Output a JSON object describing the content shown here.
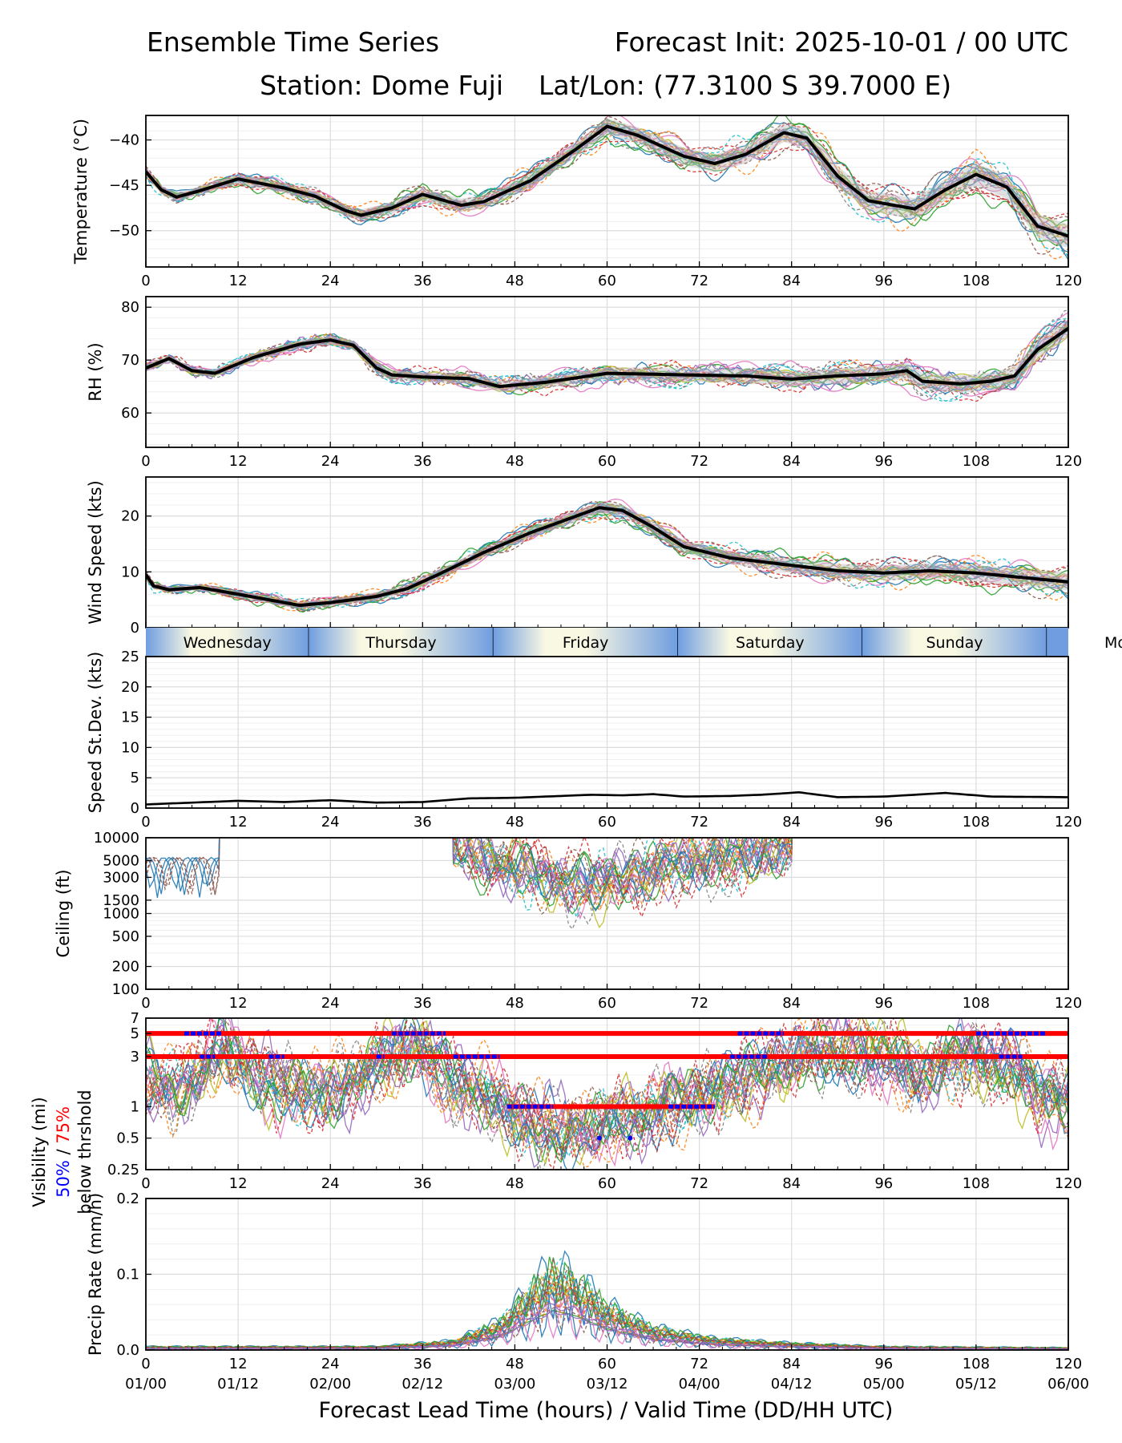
{
  "header": {
    "title_left": "Ensemble Time Series",
    "title_right": "Forecast Init: 2025-10-01 / 00 UTC",
    "station": "Station: Dome Fuji",
    "latlon": "Lat/Lon: (77.3100 S 39.7000 E)"
  },
  "x_axis": {
    "ticks": [
      0,
      12,
      24,
      36,
      48,
      60,
      72,
      84,
      96,
      108,
      120
    ],
    "valid_times": [
      "01/00",
      "01/12",
      "02/00",
      "02/12",
      "03/00",
      "03/12",
      "04/00",
      "04/12",
      "05/00",
      "05/12",
      "06/00"
    ],
    "label": "Forecast Lead Time (hours) / Valid Time (DD/HH UTC)"
  },
  "day_band": {
    "days": [
      {
        "name": "Wednesday",
        "start": 0,
        "end": 21.2
      },
      {
        "name": "Thursday",
        "start": 21.2,
        "end": 45.2
      },
      {
        "name": "Friday",
        "start": 45.2,
        "end": 69.2
      },
      {
        "name": "Saturday",
        "start": 69.2,
        "end": 93.2
      },
      {
        "name": "Sunday",
        "start": 93.2,
        "end": 117.2
      },
      {
        "name": "Mo",
        "start": 117.2,
        "end": 120
      }
    ],
    "colors": {
      "day": "#f9f8e2",
      "night": "#6f9de0"
    }
  },
  "legend": {
    "vis_label_top": "Visibility (mi)",
    "vis_label_50": "50%",
    "vis_label_slash": " / ",
    "vis_label_75": "75%",
    "vis_label_bottom": "below thrshold",
    "color_50": "#0000ff",
    "color_75": "#ff0000"
  },
  "member_colors": [
    "#1f77b4",
    "#ff7f0e",
    "#2ca02c",
    "#d62728",
    "#9467bd",
    "#8c564b",
    "#e377c2",
    "#7f7f7f",
    "#bcbd22",
    "#17becf"
  ],
  "chart_data": [
    {
      "id": "temp",
      "type": "line",
      "title": "",
      "xlabel": "",
      "ylabel": "Temperature (°C)",
      "ylim": [
        -54,
        -37.3
      ],
      "yscale": "linear",
      "yticks": [
        -50,
        -45,
        -40
      ],
      "ytick_labels": [
        "−50",
        "−45",
        "−40"
      ],
      "members": 26,
      "spread": 1.2,
      "noise": 0.4,
      "mean": {
        "x": [
          0,
          2,
          4,
          7,
          12,
          18,
          22,
          26,
          28,
          32,
          36,
          41,
          44,
          50,
          56,
          60,
          64,
          70,
          74,
          78,
          83,
          86,
          90,
          94,
          100,
          104,
          108,
          112,
          116,
          120
        ],
        "y": [
          -43.5,
          -45.5,
          -46.3,
          -45.6,
          -44.3,
          -45.3,
          -46.2,
          -47.8,
          -48.3,
          -47.5,
          -46.0,
          -47.2,
          -46.8,
          -44.5,
          -41.0,
          -38.5,
          -39.5,
          -41.8,
          -42.6,
          -41.6,
          -39.2,
          -39.8,
          -44.0,
          -46.7,
          -47.6,
          -45.5,
          -43.8,
          -45.2,
          -49.5,
          -50.6
        ]
      }
    },
    {
      "id": "rh",
      "type": "line",
      "title": "",
      "xlabel": "",
      "ylabel": "RH (%)",
      "ylim": [
        53.5,
        82
      ],
      "yscale": "linear",
      "yticks": [
        60,
        70,
        80
      ],
      "ytick_labels": [
        "60",
        "70",
        "80"
      ],
      "members": 26,
      "spread": 1.6,
      "noise": 0.7,
      "mean": {
        "x": [
          0,
          3,
          6,
          9,
          14,
          20,
          24,
          27,
          30,
          32,
          36,
          42,
          46,
          52,
          60,
          70,
          78,
          84,
          90,
          96,
          99,
          101,
          106,
          110,
          113,
          116,
          120
        ],
        "y": [
          68.5,
          70.3,
          68.0,
          67.5,
          70.5,
          73.0,
          73.8,
          72.8,
          68.5,
          67.2,
          66.8,
          66.5,
          65.0,
          65.8,
          67.5,
          67.2,
          67.0,
          66.4,
          67.0,
          67.4,
          68.0,
          66.0,
          65.5,
          66.0,
          67.0,
          72.0,
          76.0
        ]
      }
    },
    {
      "id": "wind",
      "type": "line",
      "title": "",
      "xlabel": "",
      "ylabel": "Wind Speed (kts)",
      "ylim": [
        0,
        27
      ],
      "yscale": "linear",
      "yticks": [
        0,
        10,
        20
      ],
      "ytick_labels": [
        "0",
        "10",
        "20"
      ],
      "members": 26,
      "spread": 1.4,
      "noise": 0.6,
      "mean": {
        "x": [
          0,
          1,
          3,
          7,
          12,
          16,
          20,
          24,
          30,
          34,
          38,
          44,
          50,
          56,
          59,
          62,
          66,
          70,
          76,
          82,
          90,
          96,
          102,
          108,
          114,
          120
        ],
        "y": [
          9.5,
          7.5,
          6.8,
          7.2,
          6.0,
          5.0,
          4.0,
          4.5,
          5.6,
          7.0,
          9.5,
          13.5,
          17.0,
          20.0,
          21.5,
          21.0,
          18.0,
          14.5,
          12.5,
          11.5,
          10.2,
          9.8,
          10.2,
          9.8,
          9.0,
          8.2
        ]
      }
    },
    {
      "id": "sdev",
      "type": "line",
      "title": "",
      "xlabel": "",
      "ylabel": "Speed St.Dev. (kts)",
      "ylim": [
        0,
        25
      ],
      "yscale": "linear",
      "yticks": [
        0,
        5,
        10,
        15,
        20,
        25
      ],
      "ytick_labels": [
        "0",
        "5",
        "10",
        "15",
        "20",
        "25"
      ],
      "members": 0,
      "mean": {
        "x": [
          0,
          6,
          12,
          18,
          24,
          30,
          36,
          42,
          48,
          54,
          58,
          62,
          66,
          70,
          76,
          80,
          85,
          90,
          96,
          104,
          110,
          120
        ],
        "y": [
          0.6,
          0.9,
          1.2,
          1.0,
          1.3,
          0.9,
          1.0,
          1.6,
          1.7,
          2.0,
          2.2,
          2.1,
          2.3,
          1.9,
          2.0,
          2.2,
          2.6,
          1.8,
          1.9,
          2.5,
          1.9,
          1.8
        ]
      }
    },
    {
      "id": "ceiling",
      "type": "line",
      "title": "",
      "xlabel": "",
      "ylabel": "Ceiling (ft)",
      "ylim": [
        100,
        10000
      ],
      "yscale": "log",
      "yticks": [
        100,
        200,
        500,
        1000,
        1500,
        3000,
        5000,
        10000
      ],
      "ytick_labels": [
        "100",
        "200",
        "500",
        "1000",
        "1500",
        "3000",
        "5000",
        "10000"
      ],
      "members": 26,
      "center": {
        "x": [
          40,
          48,
          54,
          58,
          62,
          68,
          76,
          84
        ],
        "y": [
          8000,
          4000,
          2800,
          2400,
          2800,
          4000,
          6000,
          8000
        ]
      }
    },
    {
      "id": "vis",
      "type": "line",
      "title": "",
      "xlabel": "",
      "ylabel": "Visibility (mi)",
      "ylim": [
        0.25,
        7
      ],
      "yscale": "log",
      "yticks": [
        0.25,
        0.5,
        1,
        3,
        5,
        7
      ],
      "ytick_labels": [
        "0.25",
        "0.5",
        "1",
        "3",
        "5",
        "7"
      ],
      "members": 26,
      "center": {
        "x": [
          0,
          4,
          10,
          14,
          18,
          24,
          30,
          35,
          40,
          46,
          50,
          56,
          60,
          66,
          72,
          78,
          84,
          90,
          96,
          102,
          108,
          112,
          116,
          120
        ],
        "y": [
          1.8,
          1.5,
          3.5,
          2.2,
          1.4,
          1.3,
          2.4,
          3.8,
          1.8,
          1.1,
          0.7,
          0.6,
          0.7,
          0.8,
          1.2,
          2.0,
          3.0,
          3.4,
          3.0,
          2.2,
          3.0,
          2.2,
          1.3,
          1.2
        ]
      },
      "thresholds_75": [
        {
          "level": 5,
          "start": 0,
          "end": 120
        },
        {
          "level": 3,
          "start": 0,
          "end": 120
        },
        {
          "level": 1,
          "start": 47,
          "end": 74
        }
      ],
      "thresholds_50": [
        {
          "level": 5,
          "start": 5,
          "end": 10
        },
        {
          "level": 5,
          "start": 32,
          "end": 39
        },
        {
          "level": 5,
          "start": 77,
          "end": 83
        },
        {
          "level": 5,
          "start": 108,
          "end": 117
        },
        {
          "level": 3,
          "start": 7,
          "end": 9
        },
        {
          "level": 3,
          "start": 16,
          "end": 18
        },
        {
          "level": 3,
          "start": 30,
          "end": 31
        },
        {
          "level": 3,
          "start": 40,
          "end": 46
        },
        {
          "level": 3,
          "start": 76,
          "end": 81
        },
        {
          "level": 3,
          "start": 111,
          "end": 114
        },
        {
          "level": 1,
          "start": 47,
          "end": 53
        },
        {
          "level": 1,
          "start": 68,
          "end": 74
        }
      ],
      "dots_50": [
        {
          "x": 59,
          "y": 0.5
        },
        {
          "x": 63,
          "y": 0.5
        }
      ]
    },
    {
      "id": "precip",
      "type": "line",
      "title": "",
      "xlabel": "",
      "ylabel": "Precip Rate (mm/h)",
      "ylim": [
        0,
        0.2
      ],
      "yscale": "linear",
      "yticks": [
        0,
        0.1,
        0.2
      ],
      "ytick_labels": [
        "0.0",
        "0.1",
        "0.2"
      ],
      "members": 26,
      "center": {
        "x": [
          0,
          30,
          40,
          46,
          50,
          53,
          56,
          60,
          66,
          74,
          84,
          96,
          120
        ],
        "y": [
          0.003,
          0.003,
          0.008,
          0.025,
          0.055,
          0.075,
          0.065,
          0.04,
          0.02,
          0.01,
          0.006,
          0.003,
          0.002
        ]
      }
    }
  ]
}
